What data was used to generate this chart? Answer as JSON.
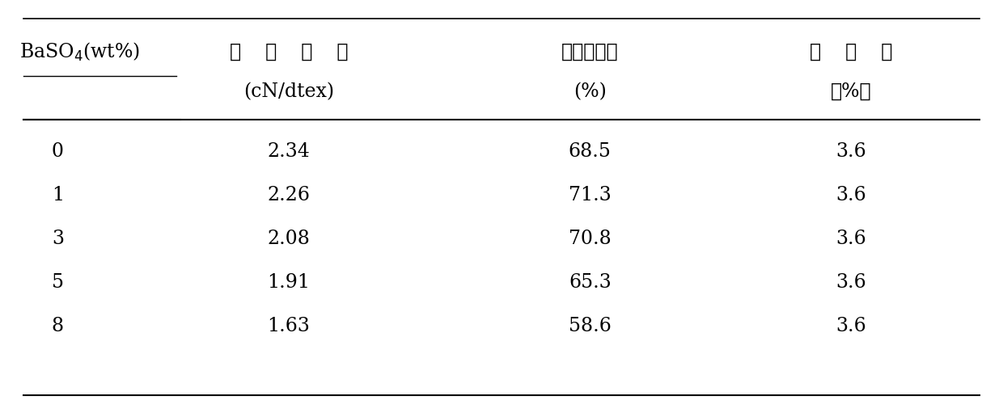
{
  "col0_header_line1": "BaSO₄(wt%)",
  "col1_header_line1": "断    裂    强    度",
  "col2_header_line1": "断裂伸长率",
  "col3_header_line1": "伸    长    率",
  "col1_header_line2": "(cN/dtex)",
  "col2_header_line2": "(%)",
  "col3_header_line2": "(％)",
  "rows": [
    [
      "0",
      "2.34",
      "68.5",
      "3.6"
    ],
    [
      "1",
      "2.26",
      "71.3",
      "3.6"
    ],
    [
      "3",
      "2.08",
      "70.8",
      "3.6"
    ],
    [
      "5",
      "1.91",
      "65.3",
      "3.6"
    ],
    [
      "8",
      "1.63",
      "58.6",
      "3.6"
    ]
  ],
  "bg_color": "#ffffff",
  "text_color": "#000000",
  "line_color": "#000000",
  "font_size_header": 17,
  "font_size_data": 17,
  "fig_width": 12.4,
  "fig_height": 5.11
}
